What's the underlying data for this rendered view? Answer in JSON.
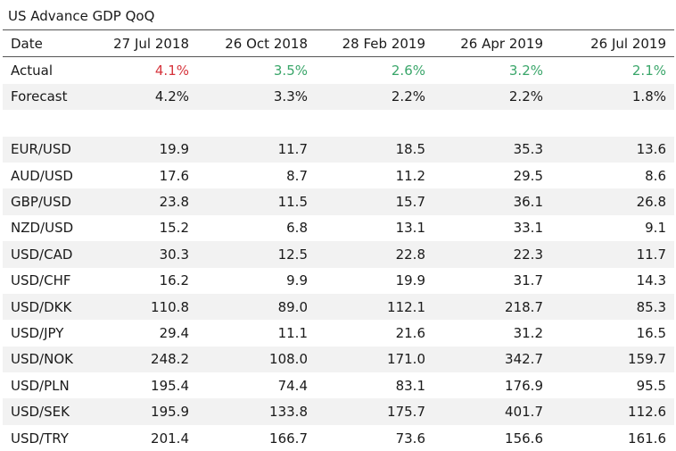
{
  "colors": {
    "positive": "#3aa66a",
    "negative": "#d6343c"
  },
  "chart_data": {
    "type": "table",
    "title": "US Advance GDP QoQ",
    "columns": [
      "Date",
      "27 Jul 2018",
      "26 Oct 2018",
      "28 Feb 2019",
      "26 Apr 2019",
      "26 Jul 2019"
    ],
    "rows": [
      {
        "label": "Actual",
        "values": [
          "4.1%",
          "3.5%",
          "2.6%",
          "3.2%",
          "2.1%"
        ],
        "tones": [
          "down",
          "up",
          "up",
          "up",
          "up"
        ]
      },
      {
        "label": "Forecast",
        "values": [
          "4.2%",
          "3.3%",
          "2.2%",
          "2.2%",
          "1.8%"
        ]
      },
      {
        "label": "",
        "values": [
          "",
          "",
          "",
          "",
          ""
        ]
      },
      {
        "label": "EUR/USD",
        "values": [
          "19.9",
          "11.7",
          "18.5",
          "35.3",
          "13.6"
        ]
      },
      {
        "label": "AUD/USD",
        "values": [
          "17.6",
          "8.7",
          "11.2",
          "29.5",
          "8.6"
        ]
      },
      {
        "label": "GBP/USD",
        "values": [
          "23.8",
          "11.5",
          "15.7",
          "36.1",
          "26.8"
        ]
      },
      {
        "label": "NZD/USD",
        "values": [
          "15.2",
          "6.8",
          "13.1",
          "33.1",
          "9.1"
        ]
      },
      {
        "label": "USD/CAD",
        "values": [
          "30.3",
          "12.5",
          "22.8",
          "22.3",
          "11.7"
        ]
      },
      {
        "label": "USD/CHF",
        "values": [
          "16.2",
          "9.9",
          "19.9",
          "31.7",
          "14.3"
        ]
      },
      {
        "label": "USD/DKK",
        "values": [
          "110.8",
          "89.0",
          "112.1",
          "218.7",
          "85.3"
        ]
      },
      {
        "label": "USD/JPY",
        "values": [
          "29.4",
          "11.1",
          "21.6",
          "31.2",
          "16.5"
        ]
      },
      {
        "label": "USD/NOK",
        "values": [
          "248.2",
          "108.0",
          "171.0",
          "342.7",
          "159.7"
        ]
      },
      {
        "label": "USD/PLN",
        "values": [
          "195.4",
          "74.4",
          "83.1",
          "176.9",
          "95.5"
        ]
      },
      {
        "label": "USD/SEK",
        "values": [
          "195.9",
          "133.8",
          "175.7",
          "401.7",
          "112.6"
        ]
      },
      {
        "label": "USD/TRY",
        "values": [
          "201.4",
          "166.7",
          "73.6",
          "156.6",
          "161.6"
        ]
      }
    ]
  }
}
